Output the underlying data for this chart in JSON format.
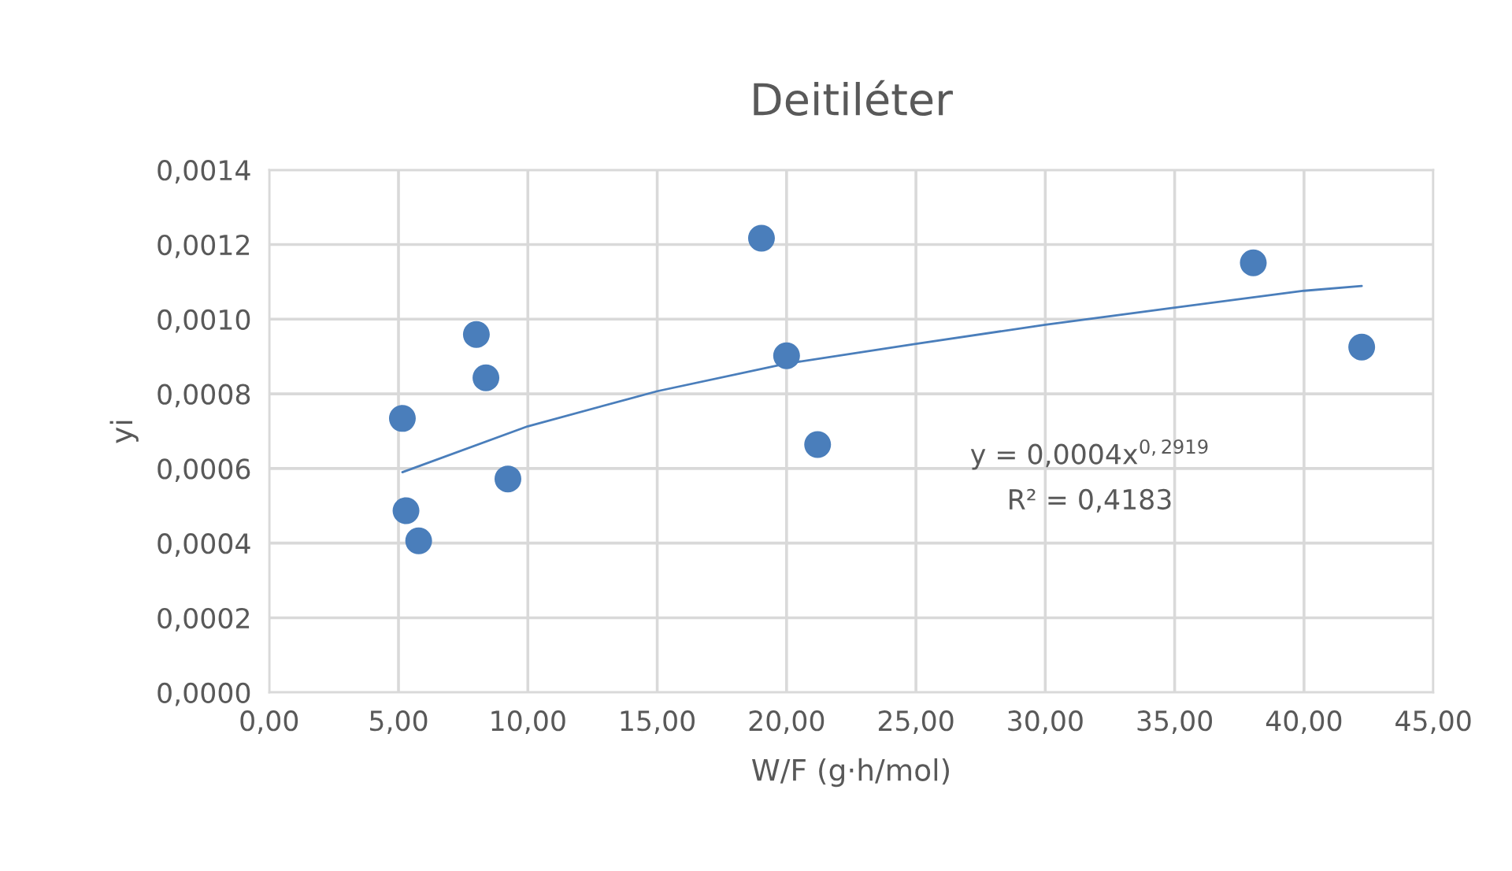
{
  "chart_data": {
    "type": "scatter",
    "title": "Deitiléter",
    "xlabel": "W/F (g·h/mol)",
    "ylabel": "yi",
    "series": [
      {
        "color": "#4a7ebb",
        "marker": "circle",
        "x": [
          5.15,
          5.29,
          5.78,
          8.01,
          8.38,
          9.23,
          19.03,
          20.0,
          21.2,
          38.04,
          42.23
        ],
        "values": [
          0.000734,
          0.000487,
          0.000406,
          0.000959,
          0.000843,
          0.000572,
          0.001217,
          0.000902,
          0.000664,
          0.001151,
          0.000925
        ]
      },
      {
        "type": "line",
        "color": "#4a7ebb",
        "marker": "none",
        "x": [
          5.15,
          10,
          15,
          20,
          25,
          30,
          35,
          40,
          42.23
        ],
        "values": [
          0.00059,
          0.000713,
          0.000807,
          0.000881,
          0.000934,
          0.000985,
          0.001031,
          0.001076,
          0.001089
        ]
      }
    ],
    "xlim": [
      0,
      45
    ],
    "ylim": [
      0,
      0.0014
    ],
    "xticks": [
      {
        "value": 0,
        "label": "0,00"
      },
      {
        "value": 5,
        "label": "5,00"
      },
      {
        "value": 10,
        "label": "10,00"
      },
      {
        "value": 15,
        "label": "15,00"
      },
      {
        "value": 20,
        "label": "20,00"
      },
      {
        "value": 25,
        "label": "25,00"
      },
      {
        "value": 30,
        "label": "30,00"
      },
      {
        "value": 35,
        "label": "35,00"
      },
      {
        "value": 40,
        "label": "40,00"
      },
      {
        "value": 45,
        "label": "45,00"
      }
    ],
    "yticks": [
      {
        "value": 0,
        "label": "0,0000"
      },
      {
        "value": 0.0002,
        "label": "0,0002"
      },
      {
        "value": 0.0004,
        "label": "0,0004"
      },
      {
        "value": 0.0006,
        "label": "0,0006"
      },
      {
        "value": 0.0008,
        "label": "0,0008"
      },
      {
        "value": 0.001,
        "label": "0,0010"
      },
      {
        "value": 0.0012,
        "label": "0,0012"
      },
      {
        "value": 0.0014,
        "label": "0,0014"
      }
    ],
    "annotations": [
      "y = 0,0004x$^{0,2919}$",
      "R² = 0,4183"
    ],
    "grid": true,
    "legend": false
  }
}
